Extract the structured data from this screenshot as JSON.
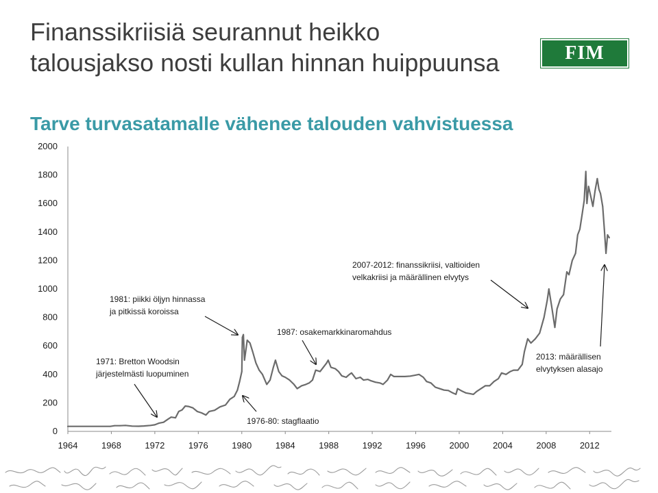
{
  "header": {
    "title": "Finanssikriisiä seurannut heikko talousjakso nosti kullan hinnan huippuunsa",
    "subtitle": "Tarve turvasatamalle vähenee talouden vahvistuessa",
    "logo_text": "FIM"
  },
  "colors": {
    "title": "#3d3d3d",
    "subtitle": "#3a9aa6",
    "logo": "#1f7a3a",
    "line": "#6b6b6b"
  },
  "chart_data": {
    "type": "line",
    "title": "",
    "xlabel": "",
    "ylabel": "",
    "ylim": [
      0,
      2000
    ],
    "xlim": [
      1964,
      2014
    ],
    "yticks": [
      0,
      200,
      400,
      600,
      800,
      1000,
      1200,
      1400,
      1600,
      1800,
      2000
    ],
    "xticks": [
      "1964",
      "1968",
      "1972",
      "1976",
      "1980",
      "1984",
      "1988",
      "1992",
      "1996",
      "2000",
      "2004",
      "2008",
      "2012"
    ],
    "grid": false,
    "legend": "none",
    "series": [
      {
        "points": [
          [
            1964.0,
            35
          ],
          [
            1967.9,
            35
          ],
          [
            1968.3,
            40
          ],
          [
            1968.8,
            40
          ],
          [
            1969.3,
            42
          ],
          [
            1969.9,
            37
          ],
          [
            1970.5,
            36
          ],
          [
            1971.0,
            38
          ],
          [
            1971.6,
            42
          ],
          [
            1972.0,
            46
          ],
          [
            1972.4,
            58
          ],
          [
            1972.8,
            64
          ],
          [
            1973.2,
            85
          ],
          [
            1973.5,
            100
          ],
          [
            1973.9,
            95
          ],
          [
            1974.2,
            140
          ],
          [
            1974.5,
            150
          ],
          [
            1974.8,
            178
          ],
          [
            1975.1,
            175
          ],
          [
            1975.5,
            165
          ],
          [
            1975.9,
            140
          ],
          [
            1976.3,
            130
          ],
          [
            1976.7,
            115
          ],
          [
            1977.0,
            140
          ],
          [
            1977.5,
            148
          ],
          [
            1978.0,
            172
          ],
          [
            1978.5,
            185
          ],
          [
            1978.9,
            225
          ],
          [
            1979.3,
            245
          ],
          [
            1979.6,
            290
          ],
          [
            1979.8,
            350
          ],
          [
            1980.0,
            420
          ],
          [
            1980.05,
            660
          ],
          [
            1980.15,
            680
          ],
          [
            1980.25,
            500
          ],
          [
            1980.5,
            640
          ],
          [
            1980.75,
            620
          ],
          [
            1981.0,
            560
          ],
          [
            1981.3,
            480
          ],
          [
            1981.6,
            430
          ],
          [
            1981.9,
            400
          ],
          [
            1982.3,
            330
          ],
          [
            1982.6,
            360
          ],
          [
            1982.9,
            450
          ],
          [
            1983.1,
            500
          ],
          [
            1983.4,
            420
          ],
          [
            1983.7,
            390
          ],
          [
            1984.0,
            380
          ],
          [
            1984.4,
            360
          ],
          [
            1984.8,
            330
          ],
          [
            1985.1,
            300
          ],
          [
            1985.5,
            320
          ],
          [
            1985.9,
            330
          ],
          [
            1986.2,
            340
          ],
          [
            1986.5,
            360
          ],
          [
            1986.8,
            430
          ],
          [
            1987.2,
            420
          ],
          [
            1987.5,
            450
          ],
          [
            1987.8,
            480
          ],
          [
            1987.95,
            500
          ],
          [
            1988.2,
            450
          ],
          [
            1988.6,
            440
          ],
          [
            1988.9,
            420
          ],
          [
            1989.2,
            390
          ],
          [
            1989.6,
            380
          ],
          [
            1989.9,
            400
          ],
          [
            1990.1,
            410
          ],
          [
            1990.5,
            370
          ],
          [
            1990.9,
            380
          ],
          [
            1991.2,
            360
          ],
          [
            1991.6,
            365
          ],
          [
            1991.9,
            355
          ],
          [
            1992.3,
            345
          ],
          [
            1992.7,
            340
          ],
          [
            1993.0,
            330
          ],
          [
            1993.4,
            360
          ],
          [
            1993.7,
            400
          ],
          [
            1994.0,
            385
          ],
          [
            1994.5,
            385
          ],
          [
            1995.0,
            385
          ],
          [
            1995.5,
            388
          ],
          [
            1996.0,
            395
          ],
          [
            1996.3,
            400
          ],
          [
            1996.7,
            380
          ],
          [
            1997.0,
            350
          ],
          [
            1997.4,
            340
          ],
          [
            1997.8,
            310
          ],
          [
            1998.2,
            300
          ],
          [
            1998.6,
            290
          ],
          [
            1999.0,
            287
          ],
          [
            1999.4,
            270
          ],
          [
            1999.7,
            260
          ],
          [
            1999.85,
            300
          ],
          [
            2000.2,
            285
          ],
          [
            2000.6,
            270
          ],
          [
            2001.0,
            265
          ],
          [
            2001.3,
            260
          ],
          [
            2001.6,
            280
          ],
          [
            2002.0,
            300
          ],
          [
            2002.4,
            320
          ],
          [
            2002.8,
            320
          ],
          [
            2003.2,
            350
          ],
          [
            2003.6,
            370
          ],
          [
            2003.9,
            410
          ],
          [
            2004.3,
            400
          ],
          [
            2004.7,
            420
          ],
          [
            2005.0,
            430
          ],
          [
            2005.4,
            430
          ],
          [
            2005.8,
            470
          ],
          [
            2006.0,
            560
          ],
          [
            2006.3,
            650
          ],
          [
            2006.6,
            620
          ],
          [
            2007.0,
            650
          ],
          [
            2007.4,
            690
          ],
          [
            2007.8,
            800
          ],
          [
            2008.1,
            920
          ],
          [
            2008.25,
            1000
          ],
          [
            2008.5,
            880
          ],
          [
            2008.8,
            730
          ],
          [
            2009.0,
            860
          ],
          [
            2009.3,
            930
          ],
          [
            2009.6,
            960
          ],
          [
            2009.9,
            1120
          ],
          [
            2010.1,
            1100
          ],
          [
            2010.4,
            1200
          ],
          [
            2010.7,
            1250
          ],
          [
            2010.9,
            1380
          ],
          [
            2011.1,
            1420
          ],
          [
            2011.3,
            1520
          ],
          [
            2011.5,
            1620
          ],
          [
            2011.65,
            1825
          ],
          [
            2011.75,
            1600
          ],
          [
            2011.9,
            1720
          ],
          [
            2012.1,
            1650
          ],
          [
            2012.3,
            1580
          ],
          [
            2012.5,
            1690
          ],
          [
            2012.7,
            1775
          ],
          [
            2012.85,
            1700
          ],
          [
            2013.0,
            1670
          ],
          [
            2013.2,
            1580
          ],
          [
            2013.35,
            1420
          ],
          [
            2013.5,
            1250
          ],
          [
            2013.65,
            1380
          ],
          [
            2013.8,
            1360
          ]
        ]
      }
    ],
    "annotations": [
      {
        "text": "1981: piikki öljyn hinnassa",
        "key": "oil1"
      },
      {
        "text": "ja pitkissä koroissa",
        "key": "oil2"
      },
      {
        "text": "1971: Bretton Woodsin",
        "key": "bw1"
      },
      {
        "text": "järjestelmästi luopuminen",
        "key": "bw2"
      },
      {
        "text": "1987: osakemarkkinaromahdus",
        "key": "crash"
      },
      {
        "text": "2007-2012: finanssikriisi, valtioiden",
        "key": "fin1"
      },
      {
        "text": "velkakriisi ja määrällinen elvytys",
        "key": "fin2"
      },
      {
        "text": "2013: määrällisen",
        "key": "qe1"
      },
      {
        "text": "elvytyksen alasajo",
        "key": "qe2"
      },
      {
        "text": "1976-80: stagflaatio",
        "key": "stag"
      }
    ]
  }
}
